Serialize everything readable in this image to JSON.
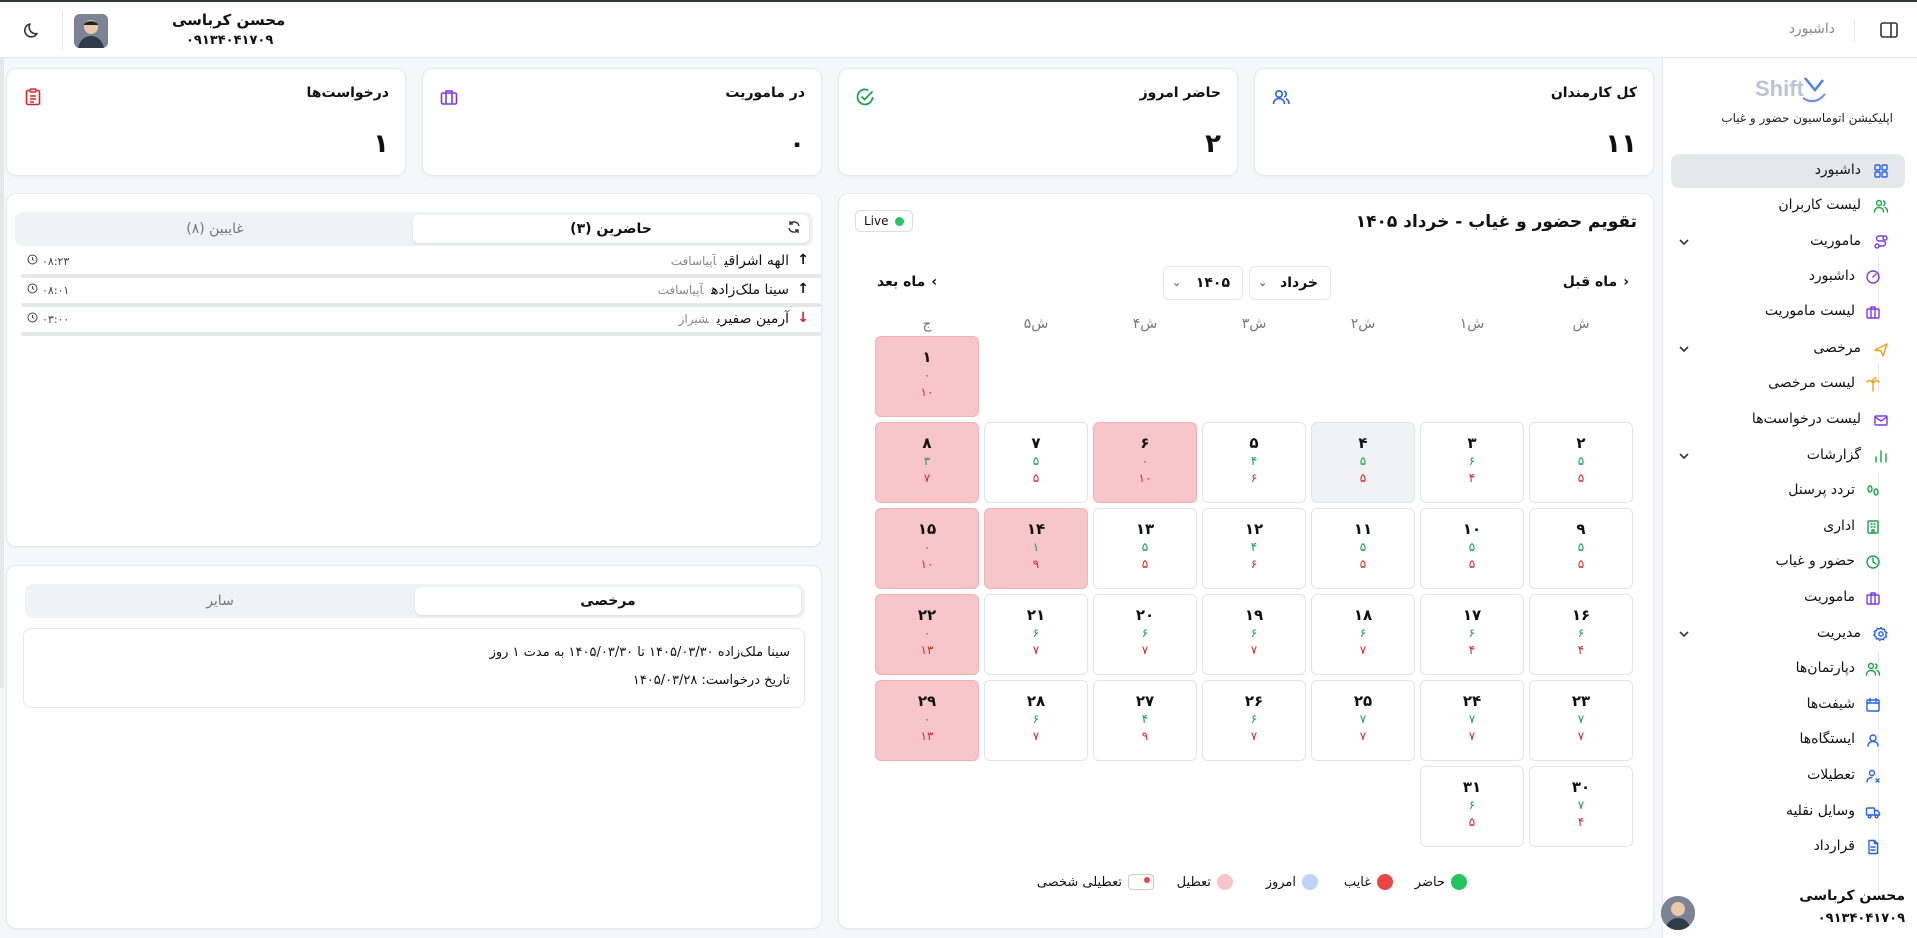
{
  "header": {
    "breadcrumb": "داشبورد",
    "user_name": "محسن کرباسی",
    "user_phone": "۰۹۱۳۴۰۴۱۷۰۹"
  },
  "sidebar": {
    "logo_text": "Shift",
    "app_name": "اپلیکیشن اتوماسیون حضور و غیاب",
    "items": [
      {
        "label": "داشبورد",
        "icon": "dashboard-icon",
        "active": true
      },
      {
        "label": "لیست کاربران",
        "icon": "users-icon"
      },
      {
        "label": "ماموریت",
        "icon": "route-icon",
        "group": true
      },
      {
        "label": "داشبورد",
        "icon": "gauge-icon",
        "sub": true
      },
      {
        "label": "لیست ماموریت",
        "icon": "briefcase-icon",
        "sub": true
      },
      {
        "label": "مرخصی",
        "icon": "plane-icon",
        "group": true
      },
      {
        "label": "لیست مرخصی",
        "icon": "palm-icon",
        "sub": true
      },
      {
        "label": "لیست درخواست‌ها",
        "icon": "mail-icon"
      },
      {
        "label": "گزارشات",
        "icon": "chart-icon",
        "group": true
      },
      {
        "label": "تردد پرسنل",
        "icon": "footprints-icon",
        "sub": true
      },
      {
        "label": "اداری",
        "icon": "building-icon",
        "sub": true
      },
      {
        "label": "حضور و غیاب",
        "icon": "clock-icon",
        "sub": true
      },
      {
        "label": "ماموریت",
        "icon": "briefcase-icon",
        "sub": true
      },
      {
        "label": "مدیریت",
        "icon": "settings-icon",
        "group": true
      },
      {
        "label": "دپارتمان‌ها",
        "icon": "users-icon",
        "sub": true
      },
      {
        "label": "شیفت‌ها",
        "icon": "calendar-icon",
        "sub": true
      },
      {
        "label": "ایستگاه‌ها",
        "icon": "user-pin-icon",
        "sub": true
      },
      {
        "label": "تعطیلات",
        "icon": "user-off-icon",
        "sub": true
      },
      {
        "label": "وسایل نقلیه",
        "icon": "truck-icon",
        "sub": true
      },
      {
        "label": "قرارداد",
        "icon": "document-icon",
        "sub": true
      }
    ],
    "footer_name": "محسن کرباسی",
    "footer_phone": "۰۹۱۳۴۰۴۱۷۰۹"
  },
  "stats": [
    {
      "title": "کل کارمندان",
      "value": "۱۱",
      "icon": "users-icon",
      "color": "#2563eb"
    },
    {
      "title": "حاضر امروز",
      "value": "۲",
      "icon": "check-circle-icon",
      "color": "#16a34a"
    },
    {
      "title": "در ماموریت",
      "value": "۰",
      "icon": "briefcase-icon",
      "color": "#7c3aed"
    },
    {
      "title": "درخواست‌ها",
      "value": "۱",
      "icon": "clipboard-icon",
      "color": "#dc2626"
    }
  ],
  "calendar": {
    "title": "تقویم حضور و غیاب - خرداد ۱۴۰۵",
    "live_label": "Live",
    "prev_label": "ماه قبل",
    "next_label": "ماه بعد",
    "month_value": "خرداد",
    "year_value": "۱۴۰۵",
    "weekdays": [
      "ش",
      "۱ش",
      "۲ش",
      "۳ش",
      "۴ش",
      "۵ش",
      "ج"
    ],
    "days": [
      {
        "day": "۱",
        "present": "۰",
        "absent": "۱۰",
        "holiday": true
      },
      {
        "day": "۲",
        "present": "۵",
        "absent": "۵"
      },
      {
        "day": "۳",
        "present": "۶",
        "absent": "۴"
      },
      {
        "day": "۴",
        "present": "۵",
        "absent": "۵",
        "today": true
      },
      {
        "day": "۵",
        "present": "۴",
        "absent": "۶"
      },
      {
        "day": "۶",
        "present": "۰",
        "absent": "۱۰",
        "holiday": true
      },
      {
        "day": "۷",
        "present": "۵",
        "absent": "۵"
      },
      {
        "day": "۸",
        "present": "۳",
        "absent": "۷",
        "holiday": true
      },
      {
        "day": "۹",
        "present": "۵",
        "absent": "۵"
      },
      {
        "day": "۱۰",
        "present": "۵",
        "absent": "۵"
      },
      {
        "day": "۱۱",
        "present": "۵",
        "absent": "۵"
      },
      {
        "day": "۱۲",
        "present": "۴",
        "absent": "۶"
      },
      {
        "day": "۱۳",
        "present": "۵",
        "absent": "۵"
      },
      {
        "day": "۱۴",
        "present": "۱",
        "absent": "۹",
        "holiday": true
      },
      {
        "day": "۱۵",
        "present": "۰",
        "absent": "۱۰",
        "holiday": true
      },
      {
        "day": "۱۶",
        "present": "۶",
        "absent": "۴"
      },
      {
        "day": "۱۷",
        "present": "۶",
        "absent": "۴"
      },
      {
        "day": "۱۸",
        "present": "۶",
        "absent": "۷"
      },
      {
        "day": "۱۹",
        "present": "۶",
        "absent": "۷"
      },
      {
        "day": "۲۰",
        "present": "۶",
        "absent": "۷"
      },
      {
        "day": "۲۱",
        "present": "۶",
        "absent": "۷"
      },
      {
        "day": "۲۲",
        "present": "۰",
        "absent": "۱۳",
        "holiday": true
      },
      {
        "day": "۲۳",
        "present": "۷",
        "absent": "۷"
      },
      {
        "day": "۲۴",
        "present": "۷",
        "absent": "۷"
      },
      {
        "day": "۲۵",
        "present": "۷",
        "absent": "۷"
      },
      {
        "day": "۲۶",
        "present": "۶",
        "absent": "۷"
      },
      {
        "day": "۲۷",
        "present": "۴",
        "absent": "۹"
      },
      {
        "day": "۲۸",
        "present": "۶",
        "absent": "۷"
      },
      {
        "day": "۲۹",
        "present": "۰",
        "absent": "۱۳",
        "holiday": true
      },
      {
        "day": "۳۰",
        "present": "۷",
        "absent": "۴"
      },
      {
        "day": "۳۱",
        "present": "۶",
        "absent": "۵"
      }
    ],
    "legend": [
      {
        "label": "حاضر",
        "color": "#22c55e"
      },
      {
        "label": "غایب",
        "color": "#ef4444"
      },
      {
        "label": "امروز",
        "color": "#bfd2f7"
      },
      {
        "label": "تعطیل",
        "color": "#f8c6c9"
      },
      {
        "label": "تعطیلی شخصی",
        "color": "#ffffff"
      }
    ]
  },
  "attendance": {
    "tab_present": "حاضرین (۳)",
    "tab_absent": "غایبین (۸)",
    "rows": [
      {
        "name": "الهه اشراقی",
        "location": "آپیاسافت",
        "time": "۰۸:۲۳",
        "direction": "in"
      },
      {
        "name": "سینا ملک‌زاده",
        "location": "آپیاسافت",
        "time": "۰۸:۰۱",
        "direction": "in"
      },
      {
        "name": "آرمین صفیری",
        "location": "شیراز",
        "time": "۰۳:۰۰",
        "direction": "out"
      }
    ]
  },
  "requests": {
    "tab_leave": "مرخصی",
    "tab_other": "سایر",
    "item_line1": "سینا ملک‌زاده  ۱۴۰۵/۰۳/۳۰  تا ۱۴۰۵/۰۳/۳۰ به مدت ۱ روز",
    "item_line2": "تاریخ درخواست: ۱۴۰۵/۰۳/۲۸"
  }
}
